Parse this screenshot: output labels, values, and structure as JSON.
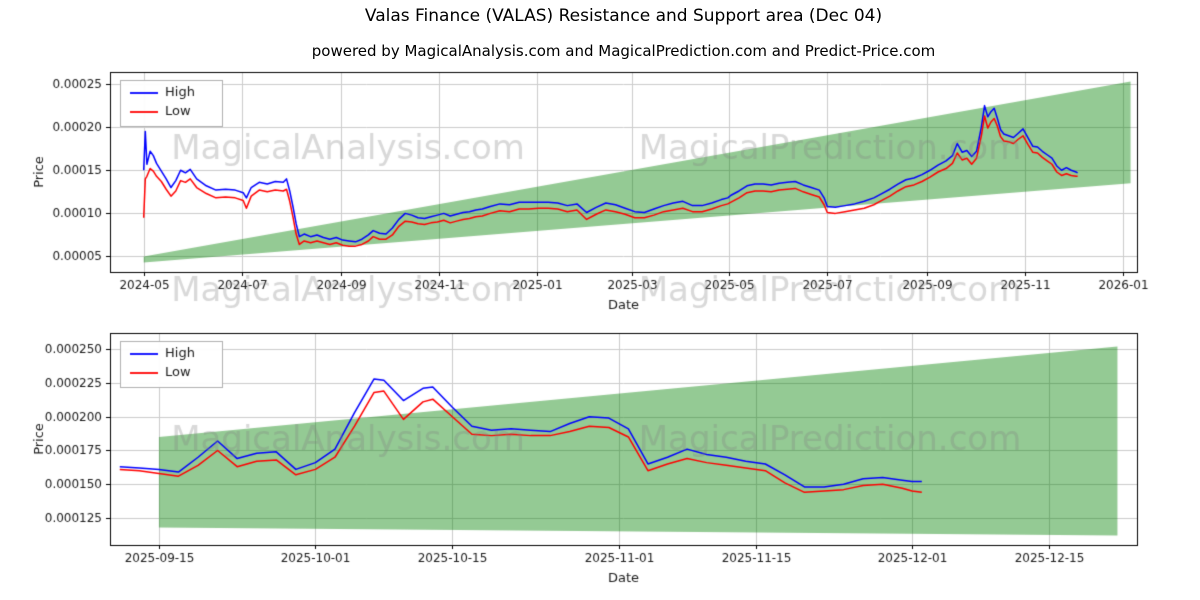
{
  "title": "Valas Finance (VALAS) Resistance and Support area (Dec 04)",
  "subtitle": "powered by MagicalAnalysis.com and MagicalPrediction.com and Predict-Price.com",
  "watermarks": [
    "MagicalAnalysis.com",
    "MagicalPrediction.com"
  ],
  "colors": {
    "high": "#0000ff",
    "low": "#ff0000",
    "band": "rgba(0,128,0,0.42)",
    "grid": "#cccccc",
    "axis": "#000000",
    "watermark": "rgba(128,128,128,0.30)"
  },
  "chart_data": [
    {
      "name": "full-history",
      "type": "line",
      "xlabel": "Date",
      "ylabel": "Price",
      "legend_position": "upper-left",
      "grid": true,
      "x_tick_labels": [
        "2024-05",
        "2024-07",
        "2024-09",
        "2024-11",
        "2025-01",
        "2025-03",
        "2025-05",
        "2025-07",
        "2025-09",
        "2025-11",
        "2026-01"
      ],
      "y_ticks": [
        5e-05,
        0.0001,
        0.00015,
        0.0002,
        0.00025
      ],
      "y_tick_labels": [
        "0.00005",
        "0.00010",
        "0.00015",
        "0.00020",
        "0.00025"
      ],
      "xlim": [
        "2024-04-10",
        "2026-01-10"
      ],
      "ylim": [
        3.2e-05,
        0.000264
      ],
      "band": {
        "label": "support-resistance-area",
        "x": [
          "2024-05-01",
          "2026-01-06"
        ],
        "upper": [
          5e-05,
          0.000253
        ],
        "lower": [
          4.3e-05,
          0.000135
        ]
      },
      "x": [
        "2024-05-01",
        "2024-05-02",
        "2024-05-03",
        "2024-05-05",
        "2024-05-07",
        "2024-05-09",
        "2024-05-12",
        "2024-05-15",
        "2024-05-18",
        "2024-05-21",
        "2024-05-24",
        "2024-05-27",
        "2024-05-30",
        "2024-06-03",
        "2024-06-09",
        "2024-06-15",
        "2024-06-21",
        "2024-06-27",
        "2024-07-02",
        "2024-07-04",
        "2024-07-07",
        "2024-07-12",
        "2024-07-17",
        "2024-07-22",
        "2024-07-27",
        "2024-07-29",
        "2024-07-31",
        "2024-08-02",
        "2024-08-04",
        "2024-08-06",
        "2024-08-09",
        "2024-08-13",
        "2024-08-17",
        "2024-08-21",
        "2024-08-25",
        "2024-08-29",
        "2024-09-02",
        "2024-09-06",
        "2024-09-10",
        "2024-09-14",
        "2024-09-18",
        "2024-09-21",
        "2024-09-25",
        "2024-09-29",
        "2024-10-03",
        "2024-10-07",
        "2024-10-11",
        "2024-10-15",
        "2024-10-19",
        "2024-10-23",
        "2024-10-27",
        "2024-10-31",
        "2024-11-04",
        "2024-11-08",
        "2024-11-12",
        "2024-11-16",
        "2024-11-20",
        "2024-11-24",
        "2024-11-28",
        "2024-12-03",
        "2024-12-09",
        "2024-12-15",
        "2024-12-21",
        "2024-12-27",
        "2025-01-02",
        "2025-01-08",
        "2025-01-14",
        "2025-01-20",
        "2025-01-26",
        "2025-02-01",
        "2025-02-07",
        "2025-02-13",
        "2025-02-19",
        "2025-02-25",
        "2025-03-03",
        "2025-03-09",
        "2025-03-15",
        "2025-03-21",
        "2025-03-27",
        "2025-04-02",
        "2025-04-08",
        "2025-04-14",
        "2025-04-20",
        "2025-04-26",
        "2025-04-30",
        "2025-05-02",
        "2025-05-07",
        "2025-05-12",
        "2025-05-17",
        "2025-05-22",
        "2025-05-27",
        "2025-06-01",
        "2025-06-06",
        "2025-06-11",
        "2025-06-16",
        "2025-06-21",
        "2025-06-26",
        "2025-06-29",
        "2025-07-01",
        "2025-07-06",
        "2025-07-12",
        "2025-07-18",
        "2025-07-24",
        "2025-07-30",
        "2025-08-04",
        "2025-08-09",
        "2025-08-14",
        "2025-08-19",
        "2025-08-24",
        "2025-08-29",
        "2025-09-03",
        "2025-09-08",
        "2025-09-13",
        "2025-09-17",
        "2025-09-20",
        "2025-09-23",
        "2025-09-26",
        "2025-09-29",
        "2025-10-02",
        "2025-10-05",
        "2025-10-07",
        "2025-10-09",
        "2025-10-11",
        "2025-10-13",
        "2025-10-15",
        "2025-10-17",
        "2025-10-19",
        "2025-10-22",
        "2025-10-25",
        "2025-10-28",
        "2025-10-31",
        "2025-11-03",
        "2025-11-06",
        "2025-11-09",
        "2025-11-12",
        "2025-11-15",
        "2025-11-18",
        "2025-11-21",
        "2025-11-24",
        "2025-11-27",
        "2025-11-30",
        "2025-12-03",
        "2025-12-04"
      ],
      "series": [
        {
          "name": "High",
          "color": "#0000ff",
          "values": [
            0.00015,
            0.000195,
            0.000157,
            0.000172,
            0.000167,
            0.000158,
            0.000149,
            0.00014,
            0.00013,
            0.000138,
            0.00015,
            0.000147,
            0.000151,
            0.00014,
            0.000132,
            0.000127,
            0.000128,
            0.000127,
            0.000124,
            0.000118,
            0.00013,
            0.000136,
            0.000134,
            0.000137,
            0.000136,
            0.00014,
            0.000126,
            0.000108,
            8.8e-05,
            7.3e-05,
            7.6e-05,
            7.3e-05,
            7.5e-05,
            7.2e-05,
            7e-05,
            7.2e-05,
            6.9e-05,
            6.8e-05,
            6.7e-05,
            7e-05,
            7.5e-05,
            8e-05,
            7.7e-05,
            7.6e-05,
            8.3e-05,
            9.3e-05,
            0.0001,
            9.8e-05,
            9.5e-05,
            9.4e-05,
            9.6e-05,
            9.8e-05,
            0.0001,
            9.7e-05,
            9.9e-05,
            0.000101,
            0.000102,
            0.000104,
            0.000105,
            0.000108,
            0.000111,
            0.00011,
            0.000113,
            0.000113,
            0.000113,
            0.000113,
            0.000112,
            0.000109,
            0.000111,
            0.000101,
            0.000107,
            0.000112,
            0.00011,
            0.000106,
            0.000102,
            0.000101,
            0.000105,
            0.000109,
            0.000112,
            0.000114,
            0.000109,
            0.000109,
            0.000112,
            0.000116,
            0.000118,
            0.000121,
            0.000126,
            0.000132,
            0.000134,
            0.000134,
            0.000133,
            0.000135,
            0.000136,
            0.000137,
            0.000133,
            0.00013,
            0.000127,
            0.000118,
            0.000108,
            0.000107,
            0.000109,
            0.000111,
            0.000114,
            0.000118,
            0.000123,
            0.000128,
            0.000134,
            0.000139,
            0.000141,
            0.000145,
            0.00015,
            0.000156,
            0.000161,
            0.000167,
            0.000181,
            0.000171,
            0.000173,
            0.000166,
            0.000172,
            0.0002,
            0.000225,
            0.000212,
            0.000218,
            0.000222,
            0.00021,
            0.000197,
            0.000192,
            0.00019,
            0.000188,
            0.000193,
            0.000198,
            0.000188,
            0.000178,
            0.000177,
            0.000172,
            0.000168,
            0.000164,
            0.000155,
            0.00015,
            0.000153,
            0.00015,
            0.000148,
            0.000147
          ]
        },
        {
          "name": "Low",
          "color": "#ff0000",
          "values": [
            9.5e-05,
            0.00014,
            0.000143,
            0.000152,
            0.000149,
            0.000143,
            0.000137,
            0.000128,
            0.00012,
            0.000126,
            0.000138,
            0.000136,
            0.00014,
            0.00013,
            0.000123,
            0.000118,
            0.000119,
            0.000118,
            0.000115,
            0.000106,
            0.00012,
            0.000127,
            0.000125,
            0.000127,
            0.000126,
            0.000128,
            0.000114,
            9.6e-05,
            7.6e-05,
            6.4e-05,
            6.8e-05,
            6.6e-05,
            6.8e-05,
            6.6e-05,
            6.4e-05,
            6.6e-05,
            6.3e-05,
            6.2e-05,
            6.2e-05,
            6.4e-05,
            6.8e-05,
            7.3e-05,
            7e-05,
            7e-05,
            7.5e-05,
            8.5e-05,
            9.1e-05,
            9e-05,
            8.8e-05,
            8.7e-05,
            8.9e-05,
            9e-05,
            9.2e-05,
            8.9e-05,
            9.1e-05,
            9.3e-05,
            9.4e-05,
            9.6e-05,
            9.7e-05,
            0.0001,
            0.000103,
            0.000102,
            0.000105,
            0.000105,
            0.000106,
            0.000106,
            0.000105,
            0.000102,
            0.000104,
            9.3e-05,
            9.9e-05,
            0.000104,
            0.000102,
            9.9e-05,
            9.5e-05,
            9.5e-05,
            9.8e-05,
            0.000102,
            0.000104,
            0.000106,
            0.000102,
            0.000102,
            0.000105,
            0.000109,
            0.000111,
            0.000113,
            0.000118,
            0.000124,
            0.000126,
            0.000126,
            0.000125,
            0.000127,
            0.000128,
            0.000129,
            0.000125,
            0.000122,
            0.000119,
            0.00011,
            0.000101,
            0.0001,
            0.000102,
            0.000104,
            0.000106,
            0.00011,
            0.000115,
            0.00012,
            0.000126,
            0.000131,
            0.000133,
            0.000137,
            0.000142,
            0.000148,
            0.000152,
            0.000158,
            0.00017,
            0.000162,
            0.000164,
            0.000157,
            0.000164,
            0.00019,
            0.000213,
            0.000199,
            0.000206,
            0.00021,
            0.000201,
            0.000189,
            0.000184,
            0.000183,
            0.000181,
            0.000186,
            0.00019,
            0.00018,
            0.000171,
            0.00017,
            0.000165,
            0.000161,
            0.000157,
            0.000148,
            0.000144,
            0.000146,
            0.000144,
            0.000143,
            0.000143
          ]
        }
      ]
    },
    {
      "name": "recent-zoom",
      "type": "line",
      "xlabel": "Date",
      "ylabel": "Price",
      "legend_position": "upper-left",
      "grid": true,
      "x_tick_labels": [
        "2025-09-15",
        "2025-10-01",
        "2025-10-15",
        "2025-11-01",
        "2025-11-15",
        "2025-12-01",
        "2025-12-15"
      ],
      "y_ticks": [
        0.000125,
        0.00015,
        0.000175,
        0.0002,
        0.000225,
        0.00025
      ],
      "y_tick_labels": [
        "0.000125",
        "0.000150",
        "0.000175",
        "0.000200",
        "0.000225",
        "0.000250"
      ],
      "xlim": [
        "2025-09-10",
        "2025-12-24"
      ],
      "ylim": [
        0.000105,
        0.000262
      ],
      "band": {
        "label": "support-resistance-area",
        "x": [
          "2025-09-15",
          "2025-12-22"
        ],
        "upper": [
          0.000185,
          0.000252
        ],
        "lower": [
          0.000118,
          0.000112
        ]
      },
      "x": [
        "2025-09-11",
        "2025-09-13",
        "2025-09-15",
        "2025-09-17",
        "2025-09-19",
        "2025-09-21",
        "2025-09-23",
        "2025-09-25",
        "2025-09-27",
        "2025-09-29",
        "2025-10-01",
        "2025-10-03",
        "2025-10-05",
        "2025-10-07",
        "2025-10-08",
        "2025-10-10",
        "2025-10-12",
        "2025-10-13",
        "2025-10-15",
        "2025-10-17",
        "2025-10-19",
        "2025-10-21",
        "2025-10-23",
        "2025-10-25",
        "2025-10-27",
        "2025-10-29",
        "2025-10-31",
        "2025-11-02",
        "2025-11-04",
        "2025-11-06",
        "2025-11-08",
        "2025-11-10",
        "2025-11-12",
        "2025-11-14",
        "2025-11-16",
        "2025-11-18",
        "2025-11-20",
        "2025-11-22",
        "2025-11-24",
        "2025-11-26",
        "2025-11-28",
        "2025-11-30",
        "2025-12-01",
        "2025-12-02"
      ],
      "series": [
        {
          "name": "High",
          "color": "#0000ff",
          "values": [
            0.000163,
            0.000162,
            0.000161,
            0.000159,
            0.00017,
            0.000182,
            0.000169,
            0.000173,
            0.000174,
            0.000161,
            0.000166,
            0.000176,
            0.000203,
            0.000228,
            0.000227,
            0.000212,
            0.000221,
            0.000222,
            0.000207,
            0.000193,
            0.00019,
            0.000191,
            0.00019,
            0.000189,
            0.000195,
            0.0002,
            0.000199,
            0.000191,
            0.000165,
            0.00017,
            0.000176,
            0.000172,
            0.00017,
            0.000167,
            0.000165,
            0.000157,
            0.000148,
            0.000148,
            0.00015,
            0.000154,
            0.000155,
            0.000153,
            0.000152,
            0.000152
          ]
        },
        {
          "name": "Low",
          "color": "#ff0000",
          "values": [
            0.000161,
            0.00016,
            0.000158,
            0.000156,
            0.000164,
            0.000175,
            0.000163,
            0.000167,
            0.000168,
            0.000157,
            0.000161,
            0.00017,
            0.000193,
            0.000218,
            0.000219,
            0.000198,
            0.000211,
            0.000213,
            0.0002,
            0.000187,
            0.000186,
            0.000187,
            0.000186,
            0.000186,
            0.000189,
            0.000193,
            0.000192,
            0.000185,
            0.00016,
            0.000165,
            0.000169,
            0.000166,
            0.000164,
            0.000162,
            0.00016,
            0.000151,
            0.000144,
            0.000145,
            0.000146,
            0.000149,
            0.00015,
            0.000147,
            0.000145,
            0.000144
          ]
        }
      ]
    }
  ]
}
